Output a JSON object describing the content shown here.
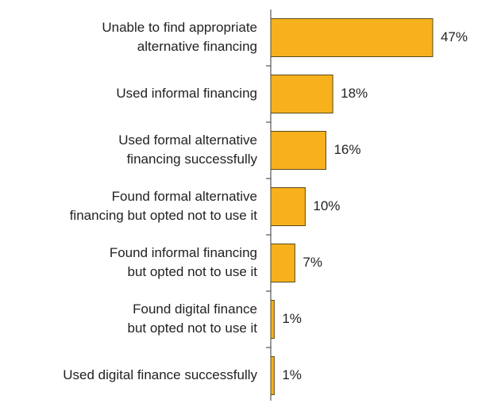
{
  "chart_data": {
    "type": "bar",
    "orientation": "horizontal",
    "categories": [
      [
        "Unable to find appropriate",
        "alternative financing"
      ],
      [
        "Used informal financing"
      ],
      [
        "Used formal alternative",
        "financing successfully"
      ],
      [
        "Found formal alternative",
        "financing but opted not to use it"
      ],
      [
        "Found informal financing",
        "but opted not to use it"
      ],
      [
        "Found digital finance",
        "but opted not to use it"
      ],
      [
        "Used digital finance successfully"
      ]
    ],
    "values": [
      47,
      18,
      16,
      10,
      7,
      1,
      1
    ],
    "value_labels": [
      "47%",
      "18%",
      "16%",
      "10%",
      "7%",
      "1%",
      "1%"
    ],
    "color": "#f7b11c"
  }
}
